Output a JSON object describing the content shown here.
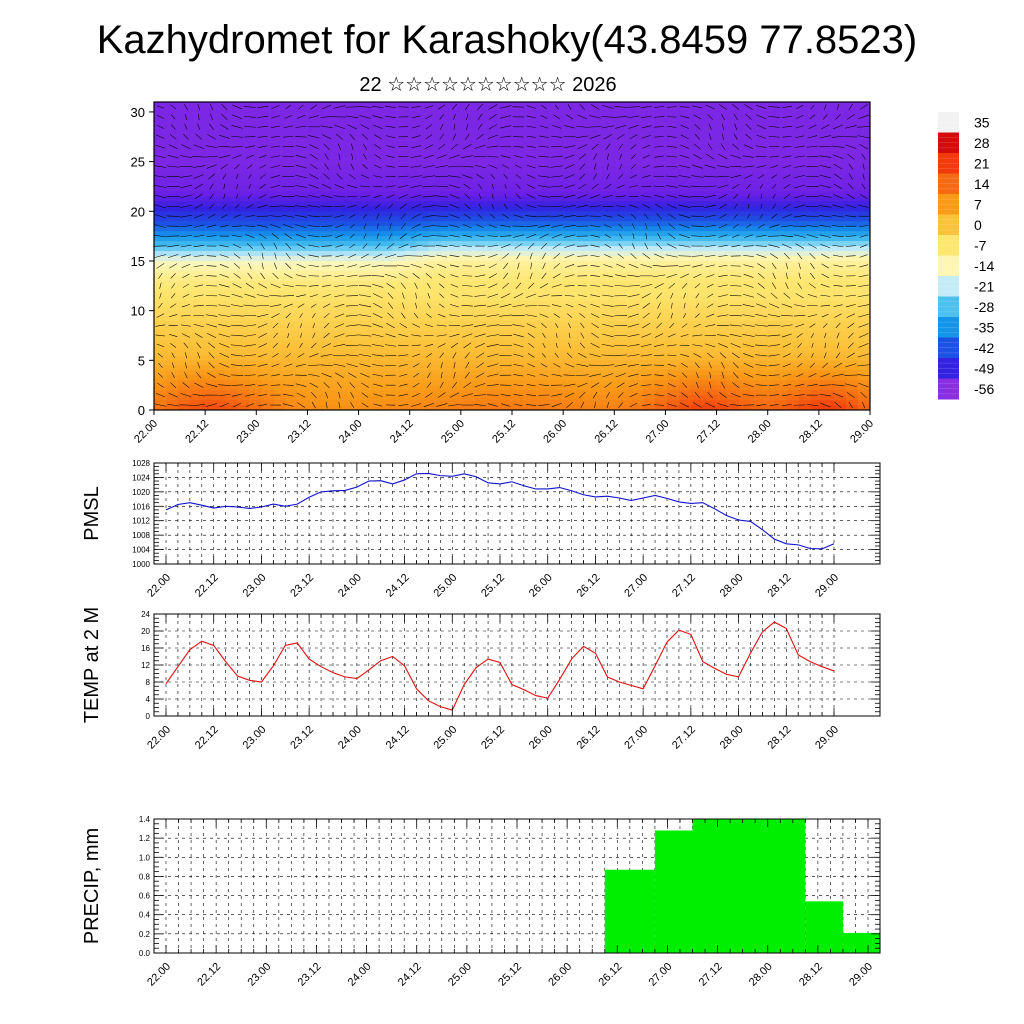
{
  "header": {
    "title": "Kazhydromet for Karashoky(43.8459 77.8523)",
    "subtitle": "22 ☆☆☆☆☆☆☆☆☆☆ 2026"
  },
  "chart_data": [
    {
      "type": "heatmap",
      "title": "",
      "xlabel": "",
      "ylabel": "",
      "x_tick_labels": [
        "22.00",
        "22.12",
        "23.00",
        "23.12",
        "24.00",
        "24.12",
        "25.00",
        "25.12",
        "26.00",
        "26.12",
        "27.00",
        "27.12",
        "28.00",
        "28.12",
        "29.00"
      ],
      "y_ticks": [
        0,
        5,
        10,
        15,
        20,
        25,
        30
      ],
      "ylim": [
        0,
        31
      ],
      "colorbar_labels": [
        "35",
        "28",
        "21",
        "14",
        "7",
        "0",
        "-7",
        "-14",
        "-21",
        "-28",
        "-35",
        "-42",
        "-49",
        "-56"
      ],
      "colorbar_colors": [
        "#f2f2f2",
        "#d40b0b",
        "#f23a0c",
        "#f66a12",
        "#f99a18",
        "#fcc23a",
        "#ffe66e",
        "#fff6b4",
        "#c4ecf8",
        "#4cc1f0",
        "#1595ea",
        "#1c52e4",
        "#3322e0",
        "#8a2ee2"
      ],
      "overlay": "wind vectors",
      "grid": false
    },
    {
      "type": "line",
      "ylabel": "PMSL",
      "x_tick_labels": [
        "22.00",
        "22.12",
        "23.00",
        "23.12",
        "24.00",
        "24.12",
        "25.00",
        "25.12",
        "26.00",
        "26.12",
        "27.00",
        "27.12",
        "28.00",
        "28.12",
        "29.00"
      ],
      "y_ticks": [
        1000,
        1004,
        1008,
        1012,
        1016,
        1020,
        1024,
        1028
      ],
      "ylim": [
        1000,
        1028
      ],
      "grid": true,
      "color": "#1010d0",
      "series": [
        {
          "values": [
            1015,
            1016.5,
            1017,
            1016.3,
            1015.5,
            1016,
            1015.8,
            1015.4,
            1015.8,
            1016.6,
            1016,
            1016.6,
            1018.5,
            1020,
            1020.3,
            1020.4,
            1021.3,
            1023,
            1023.1,
            1022.2,
            1023.3,
            1025,
            1025.1,
            1024.5,
            1024.3,
            1025,
            1024.2,
            1022.5,
            1022.2,
            1022.8,
            1021.7,
            1020.8,
            1020.8,
            1021.2,
            1020.3,
            1019.2,
            1018.6,
            1018.8,
            1018.3,
            1017.6,
            1018.3,
            1019,
            1018.2,
            1017.2,
            1016.8,
            1017,
            1015.3,
            1013.4,
            1012.2,
            1011.8,
            1009.5,
            1006.9,
            1005.6,
            1005.3,
            1004.3,
            1004.2,
            1005.6
          ]
        }
      ]
    },
    {
      "type": "line",
      "ylabel": "TEMP at 2 M",
      "x_tick_labels": [
        "22.00",
        "22.12",
        "23.00",
        "23.12",
        "24.00",
        "24.12",
        "25.00",
        "25.12",
        "26.00",
        "26.12",
        "27.00",
        "27.12",
        "28.00",
        "28.12",
        "29.00"
      ],
      "y_ticks": [
        0,
        4,
        8,
        12,
        16,
        20,
        24
      ],
      "ylim": [
        0,
        24
      ],
      "grid": true,
      "color": "#e01010",
      "series": [
        {
          "values": [
            7.6,
            11.6,
            15.6,
            17.6,
            16.6,
            12.8,
            9.4,
            8.4,
            8,
            11.8,
            16.6,
            17.2,
            13.4,
            11.6,
            10.2,
            9.2,
            8.8,
            10.8,
            13,
            14,
            11.8,
            6.4,
            3.6,
            2.2,
            1.4,
            7.4,
            11.4,
            13.4,
            12.6,
            7.4,
            6.2,
            4.8,
            4.2,
            8.6,
            13.4,
            16.4,
            14.8,
            9.2,
            8,
            7.2,
            6.4,
            11.8,
            17.4,
            20.2,
            19.2,
            12.8,
            11.2,
            9.8,
            9.2,
            14.8,
            19.8,
            22.1,
            20.6,
            14.4,
            12.8,
            11.6,
            10.6
          ]
        }
      ]
    },
    {
      "type": "bar",
      "ylabel": "PRECIP, mm",
      "x_tick_labels": [
        "22.00",
        "22.12",
        "23.00",
        "23.12",
        "24.00",
        "24.12",
        "25.00",
        "25.12",
        "26.00",
        "26.12",
        "27.00",
        "27.12",
        "28.00",
        "28.12",
        "29.00"
      ],
      "y_ticks": [
        0.0,
        0.2,
        0.4,
        0.6,
        0.8,
        1.0,
        1.2,
        1.4
      ],
      "y_tick_labels": [
        "0.0",
        "0.2",
        "0.4",
        "0.6",
        "0.8",
        "1.0",
        "1.2",
        "1.4"
      ],
      "ylim": [
        0,
        1.4
      ],
      "grid": true,
      "color": "#00ee00",
      "bars": [
        {
          "start": 35,
          "end": 39,
          "value": 0.87
        },
        {
          "start": 39,
          "end": 42,
          "value": 1.28
        },
        {
          "start": 42,
          "end": 51,
          "value": 1.4
        },
        {
          "start": 51,
          "end": 54,
          "value": 0.54
        },
        {
          "start": 54,
          "end": 57,
          "value": 0.21
        }
      ]
    }
  ]
}
